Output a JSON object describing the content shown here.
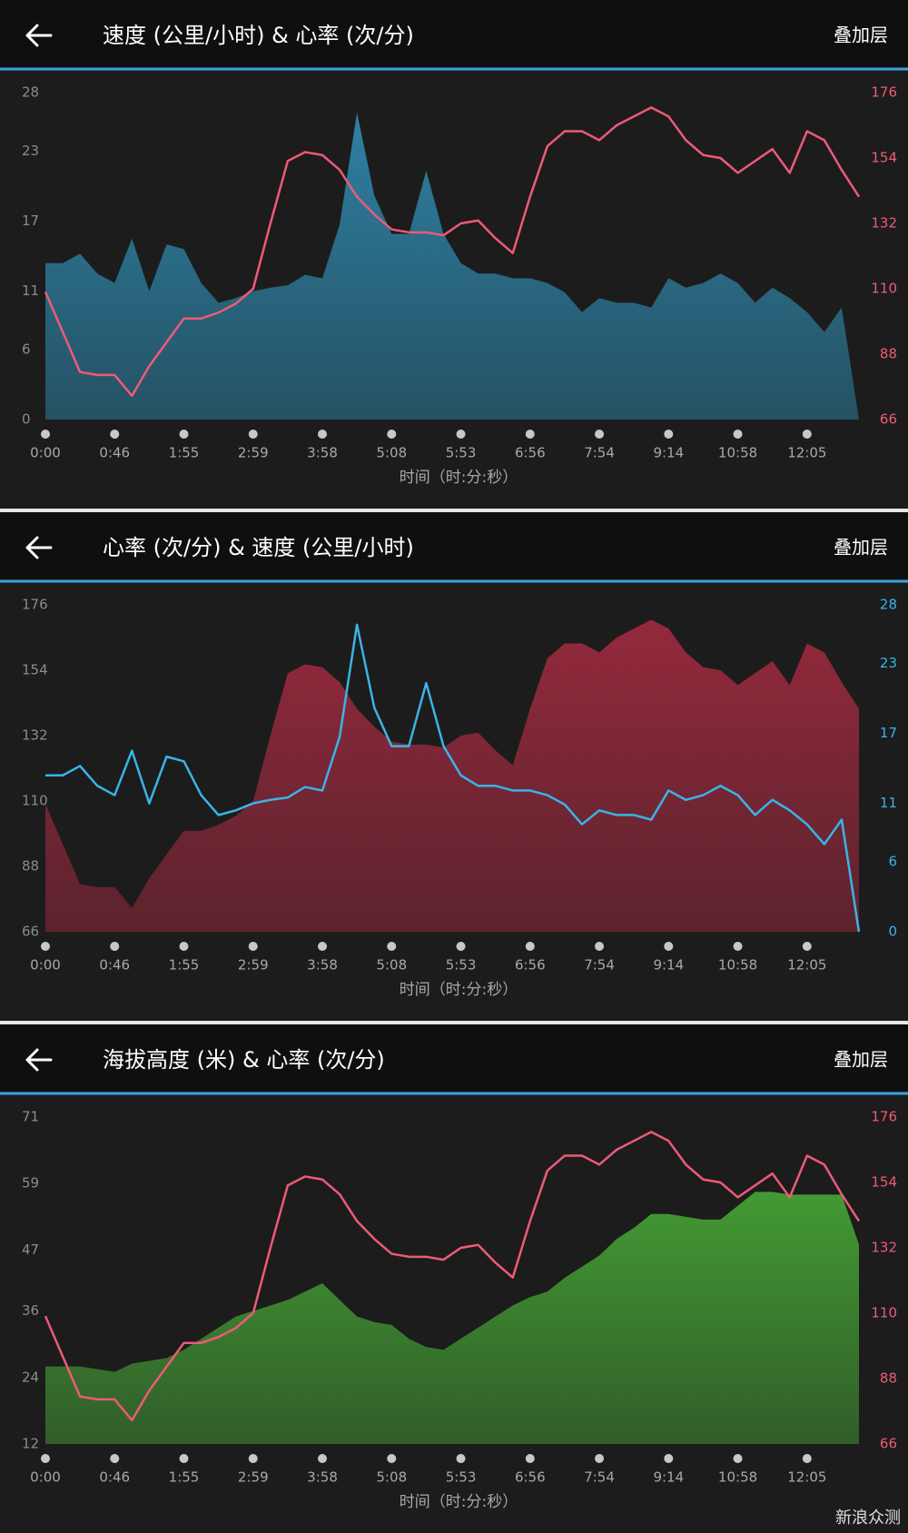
{
  "chart_data": [
    {
      "type": "area_line",
      "title": "速度 (公里/小时) & 心率 (次/分)",
      "overlay_label": "叠加层",
      "x_label": "时间（时:分:秒）",
      "x": [
        0,
        0.25,
        0.5,
        0.75,
        1,
        1.25,
        1.5,
        1.75,
        2,
        2.25,
        2.5,
        2.75,
        3,
        3.25,
        3.5,
        3.75,
        4,
        4.25,
        4.5,
        4.75,
        5,
        5.25,
        5.5,
        5.75,
        6,
        6.25,
        6.5,
        6.75,
        7,
        7.25,
        7.5,
        7.75,
        8,
        8.25,
        8.5,
        8.75,
        9,
        9.25,
        9.5,
        9.75,
        10,
        10.25,
        10.5,
        10.75,
        11,
        11.25,
        11.5,
        11.75
      ],
      "xlim": [
        0,
        11.75
      ],
      "xticks": [
        {
          "value": 0,
          "label": "0:00"
        },
        {
          "value": 1,
          "label": "0:46"
        },
        {
          "value": 2,
          "label": "1:55"
        },
        {
          "value": 3,
          "label": "2:59"
        },
        {
          "value": 4,
          "label": "3:58"
        },
        {
          "value": 5,
          "label": "5:08"
        },
        {
          "value": 6,
          "label": "5:53"
        },
        {
          "value": 7,
          "label": "6:56"
        },
        {
          "value": 8,
          "label": "7:54"
        },
        {
          "value": 9,
          "label": "9:14"
        },
        {
          "value": 10,
          "label": "10:58"
        },
        {
          "value": 11,
          "label": "12:05"
        }
      ],
      "ylim": [
        0,
        28
      ],
      "yticks": [
        0,
        6,
        11,
        17,
        23,
        28
      ],
      "y2lim": [
        66,
        176
      ],
      "y2ticks": [
        66,
        88,
        110,
        132,
        154,
        176
      ],
      "series": [
        {
          "kind": "area",
          "color": "#2f86aa",
          "axis": "y",
          "values": [
            13.4,
            13.4,
            14.2,
            12.5,
            11.7,
            15.5,
            11,
            15,
            14.6,
            11.7,
            10,
            10.4,
            11,
            11.3,
            11.5,
            12.4,
            12.1,
            16.7,
            26.3,
            19.2,
            15.9,
            15.9,
            21.3,
            15.9,
            13.4,
            12.5,
            12.5,
            12.1,
            12.1,
            11.7,
            10.9,
            9.2,
            10.4,
            10,
            10,
            9.6,
            12.1,
            11.3,
            11.7,
            12.5,
            11.7,
            10,
            11.3,
            10.4,
            9.2,
            7.5,
            9.6,
            0
          ]
        },
        {
          "kind": "line",
          "color": "#ee5a78",
          "axis": "y2",
          "values": [
            109,
            95.5,
            82,
            81,
            81,
            74,
            84,
            92,
            100,
            100,
            102,
            105,
            110,
            132,
            153,
            156,
            155,
            150,
            141,
            135,
            130,
            129,
            129,
            128,
            132,
            133,
            127,
            122,
            141,
            158,
            163,
            163,
            160,
            165,
            168,
            171,
            168,
            160,
            155,
            154,
            149,
            153,
            157,
            149,
            163,
            160,
            150,
            141
          ]
        }
      ]
    },
    {
      "type": "area_line",
      "title": "心率 (次/分) & 速度 (公里/小时)",
      "overlay_label": "叠加层",
      "x_label": "时间（时:分:秒）",
      "x": [
        0,
        0.25,
        0.5,
        0.75,
        1,
        1.25,
        1.5,
        1.75,
        2,
        2.25,
        2.5,
        2.75,
        3,
        3.25,
        3.5,
        3.75,
        4,
        4.25,
        4.5,
        4.75,
        5,
        5.25,
        5.5,
        5.75,
        6,
        6.25,
        6.5,
        6.75,
        7,
        7.25,
        7.5,
        7.75,
        8,
        8.25,
        8.5,
        8.75,
        9,
        9.25,
        9.5,
        9.75,
        10,
        10.25,
        10.5,
        10.75,
        11,
        11.25,
        11.5,
        11.75
      ],
      "xlim": [
        0,
        11.75
      ],
      "xticks": [
        {
          "value": 0,
          "label": "0:00"
        },
        {
          "value": 1,
          "label": "0:46"
        },
        {
          "value": 2,
          "label": "1:55"
        },
        {
          "value": 3,
          "label": "2:59"
        },
        {
          "value": 4,
          "label": "3:58"
        },
        {
          "value": 5,
          "label": "5:08"
        },
        {
          "value": 6,
          "label": "5:53"
        },
        {
          "value": 7,
          "label": "6:56"
        },
        {
          "value": 8,
          "label": "7:54"
        },
        {
          "value": 9,
          "label": "9:14"
        },
        {
          "value": 10,
          "label": "10:58"
        },
        {
          "value": 11,
          "label": "12:05"
        }
      ],
      "ylim": [
        66,
        176
      ],
      "yticks": [
        66,
        88,
        110,
        132,
        154,
        176
      ],
      "y2lim": [
        0,
        28
      ],
      "y2ticks": [
        0,
        6,
        11,
        17,
        23,
        28
      ],
      "series": [
        {
          "kind": "area",
          "color": "#9a2a3e",
          "axis": "y",
          "values": [
            109,
            95.5,
            82,
            81,
            81,
            74,
            84,
            92,
            100,
            100,
            102,
            105,
            110,
            132,
            153,
            156,
            155,
            150,
            141,
            135,
            130,
            129,
            129,
            128,
            132,
            133,
            127,
            122,
            141,
            158,
            163,
            163,
            160,
            165,
            168,
            171,
            168,
            160,
            155,
            154,
            149,
            153,
            157,
            149,
            163,
            160,
            150,
            141
          ]
        },
        {
          "kind": "line",
          "color": "#3ab4e6",
          "axis": "y2",
          "values": [
            13.4,
            13.4,
            14.2,
            12.5,
            11.7,
            15.5,
            11,
            15,
            14.6,
            11.7,
            10,
            10.4,
            11,
            11.3,
            11.5,
            12.4,
            12.1,
            16.7,
            26.3,
            19.2,
            15.9,
            15.9,
            21.3,
            15.9,
            13.4,
            12.5,
            12.5,
            12.1,
            12.1,
            11.7,
            10.9,
            9.2,
            10.4,
            10,
            10,
            9.6,
            12.1,
            11.3,
            11.7,
            12.5,
            11.7,
            10,
            11.3,
            10.4,
            9.2,
            7.5,
            9.6,
            0
          ]
        }
      ]
    },
    {
      "type": "area_line",
      "title": "海拔高度 (米) & 心率 (次/分)",
      "overlay_label": "叠加层",
      "x_label": "时间（时:分:秒）",
      "x": [
        0,
        0.25,
        0.5,
        0.75,
        1,
        1.25,
        1.5,
        1.75,
        2,
        2.25,
        2.5,
        2.75,
        3,
        3.25,
        3.5,
        3.75,
        4,
        4.25,
        4.5,
        4.75,
        5,
        5.25,
        5.5,
        5.75,
        6,
        6.25,
        6.5,
        6.75,
        7,
        7.25,
        7.5,
        7.75,
        8,
        8.25,
        8.5,
        8.75,
        9,
        9.25,
        9.5,
        9.75,
        10,
        10.25,
        10.5,
        10.75,
        11,
        11.25,
        11.5,
        11.75
      ],
      "xlim": [
        0,
        11.75
      ],
      "xticks": [
        {
          "value": 0,
          "label": "0:00"
        },
        {
          "value": 1,
          "label": "0:46"
        },
        {
          "value": 2,
          "label": "1:55"
        },
        {
          "value": 3,
          "label": "2:59"
        },
        {
          "value": 4,
          "label": "3:58"
        },
        {
          "value": 5,
          "label": "5:08"
        },
        {
          "value": 6,
          "label": "5:53"
        },
        {
          "value": 7,
          "label": "6:56"
        },
        {
          "value": 8,
          "label": "7:54"
        },
        {
          "value": 9,
          "label": "9:14"
        },
        {
          "value": 10,
          "label": "10:58"
        },
        {
          "value": 11,
          "label": "12:05"
        }
      ],
      "ylim": [
        12,
        71
      ],
      "yticks": [
        12,
        24,
        36,
        47,
        59,
        71
      ],
      "y2lim": [
        66,
        176
      ],
      "y2ticks": [
        66,
        88,
        110,
        132,
        154,
        176
      ],
      "series": [
        {
          "kind": "area",
          "color": "#45a035",
          "axis": "y",
          "values": [
            26,
            26,
            26,
            25.5,
            25,
            26.5,
            27,
            27.5,
            29,
            31,
            33,
            35,
            36,
            37,
            38,
            39.5,
            41,
            38,
            35,
            34,
            33.5,
            31,
            29.5,
            29,
            31,
            33,
            35,
            37,
            38.5,
            39.5,
            42,
            44,
            46,
            49,
            51,
            53.5,
            53.5,
            53,
            52.5,
            52.5,
            55,
            57.5,
            57.5,
            57,
            57,
            57,
            57,
            48
          ]
        },
        {
          "kind": "line",
          "color": "#ee5a78",
          "axis": "y2",
          "values": [
            109,
            95.5,
            82,
            81,
            81,
            74,
            84,
            92,
            100,
            100,
            102,
            105,
            110,
            132,
            153,
            156,
            155,
            150,
            141,
            135,
            130,
            129,
            129,
            128,
            132,
            133,
            127,
            122,
            141,
            158,
            163,
            163,
            160,
            165,
            168,
            171,
            168,
            160,
            155,
            154,
            149,
            153,
            157,
            149,
            163,
            160,
            150,
            141
          ]
        }
      ]
    }
  ],
  "watermark": "新浪众测"
}
